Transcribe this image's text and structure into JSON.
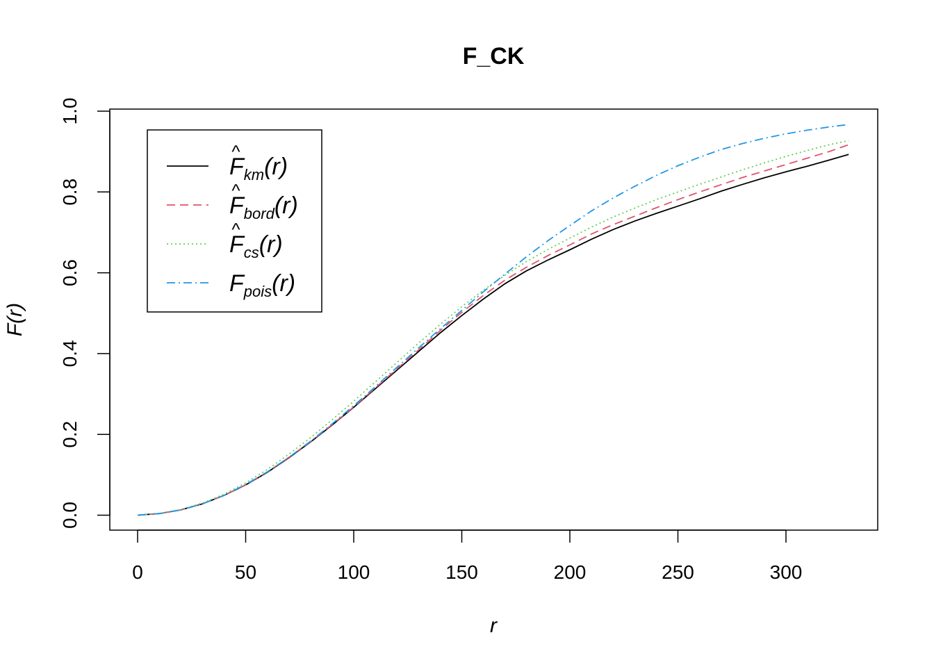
{
  "chart_data": {
    "type": "line",
    "title": "F_CK",
    "xlabel": "r",
    "ylabel": "F(r)",
    "xlim": [
      0,
      330
    ],
    "ylim": [
      0,
      1
    ],
    "xticks": [
      0,
      50,
      100,
      150,
      200,
      250,
      300
    ],
    "yticks": [
      0.0,
      0.2,
      0.4,
      0.6,
      0.8,
      1.0
    ],
    "ytick_labels": [
      "0.0",
      "0.2",
      "0.4",
      "0.6",
      "0.8",
      "1.0"
    ],
    "grid": false,
    "legend_position": "top-left",
    "x": [
      0,
      10,
      20,
      30,
      40,
      50,
      60,
      70,
      80,
      90,
      100,
      110,
      120,
      130,
      140,
      150,
      160,
      170,
      180,
      190,
      200,
      210,
      220,
      230,
      240,
      250,
      260,
      270,
      280,
      290,
      300,
      310,
      320,
      329
    ],
    "series": [
      {
        "name": "F̂km(r)",
        "legend_base": "F",
        "legend_sub": "km",
        "legend_hat": true,
        "color": "#000000",
        "dash": "",
        "values": [
          0.0,
          0.004,
          0.013,
          0.028,
          0.049,
          0.075,
          0.106,
          0.142,
          0.181,
          0.223,
          0.267,
          0.313,
          0.359,
          0.405,
          0.451,
          0.494,
          0.535,
          0.573,
          0.605,
          0.632,
          0.657,
          0.683,
          0.707,
          0.728,
          0.747,
          0.765,
          0.783,
          0.802,
          0.819,
          0.835,
          0.85,
          0.864,
          0.879,
          0.893
        ]
      },
      {
        "name": "F̂bord(r)",
        "legend_base": "F",
        "legend_sub": "bord",
        "legend_hat": true,
        "color": "#DF536B",
        "dash": "12,7",
        "values": [
          0.0,
          0.004,
          0.013,
          0.028,
          0.049,
          0.075,
          0.107,
          0.143,
          0.182,
          0.224,
          0.268,
          0.315,
          0.362,
          0.409,
          0.457,
          0.502,
          0.544,
          0.582,
          0.614,
          0.643,
          0.669,
          0.696,
          0.719,
          0.74,
          0.761,
          0.781,
          0.8,
          0.818,
          0.836,
          0.852,
          0.868,
          0.884,
          0.9,
          0.917
        ]
      },
      {
        "name": "F̂cs(r)",
        "legend_base": "F",
        "legend_sub": "cs",
        "legend_hat": true,
        "color": "#61D04F",
        "dash": "2,4",
        "values": [
          0.0,
          0.004,
          0.014,
          0.03,
          0.052,
          0.08,
          0.113,
          0.151,
          0.192,
          0.236,
          0.282,
          0.33,
          0.378,
          0.426,
          0.472,
          0.516,
          0.557,
          0.594,
          0.628,
          0.658,
          0.686,
          0.713,
          0.738,
          0.76,
          0.781,
          0.8,
          0.819,
          0.837,
          0.855,
          0.872,
          0.888,
          0.903,
          0.917,
          0.927
        ]
      },
      {
        "name": "Fpois(r)",
        "legend_base": "F",
        "legend_sub": "pois",
        "legend_hat": false,
        "color": "#2297E6",
        "dash": "12,5,2,5",
        "values": [
          0.0,
          0.004,
          0.013,
          0.028,
          0.049,
          0.076,
          0.107,
          0.143,
          0.183,
          0.226,
          0.271,
          0.318,
          0.366,
          0.414,
          0.461,
          0.507,
          0.553,
          0.597,
          0.64,
          0.68,
          0.717,
          0.753,
          0.785,
          0.814,
          0.841,
          0.865,
          0.886,
          0.905,
          0.92,
          0.933,
          0.944,
          0.953,
          0.961,
          0.967
        ]
      }
    ]
  }
}
